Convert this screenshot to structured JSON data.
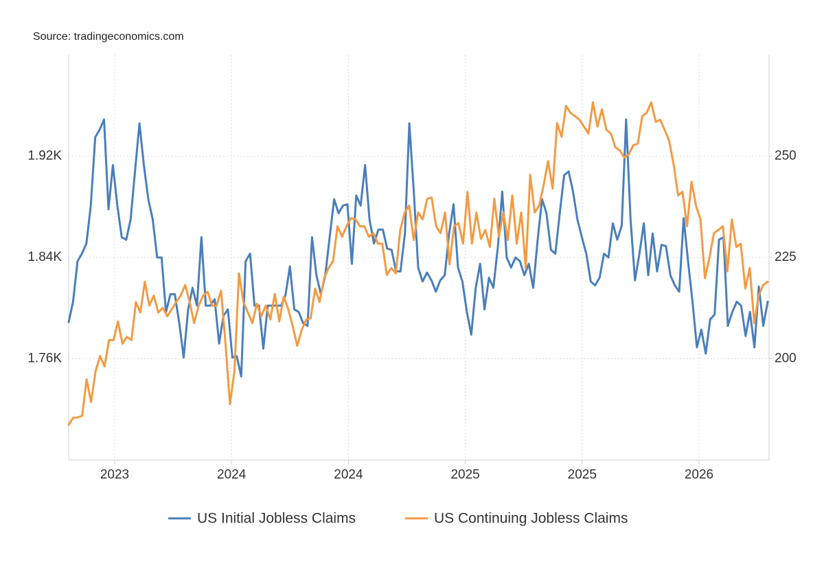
{
  "chart_data": {
    "type": "line",
    "source": "Source: tradingeconomics.com",
    "xtick_labels": [
      "2023",
      "2024",
      "2024",
      "2025",
      "2025",
      "2026"
    ],
    "ylim": [
      1.68,
      2.0
    ],
    "yticks": [
      {
        "value": 1.76,
        "label": "1.76K"
      },
      {
        "value": 1.84,
        "label": "1.84K"
      },
      {
        "value": 1.92,
        "label": "1.92K"
      }
    ],
    "y2lim": [
      175,
      275
    ],
    "y2ticks": [
      200,
      225,
      250
    ],
    "grid": true,
    "legend": "bottom",
    "series": [
      {
        "name": "US Initial Jobless Claims",
        "color": "#4a7ebb",
        "axis": "y",
        "values": [
          1.789,
          1.805,
          1.837,
          1.843,
          1.851,
          1.881,
          1.935,
          1.941,
          1.949,
          1.878,
          1.913,
          1.881,
          1.856,
          1.854,
          1.87,
          1.908,
          1.946,
          1.913,
          1.886,
          1.87,
          1.84,
          1.84,
          1.797,
          1.811,
          1.811,
          1.788,
          1.761,
          1.799,
          1.816,
          1.802,
          1.856,
          1.802,
          1.802,
          1.807,
          1.772,
          1.794,
          1.799,
          1.761,
          1.762,
          1.746,
          1.837,
          1.843,
          1.802,
          1.802,
          1.768,
          1.802,
          1.802,
          1.802,
          1.802,
          1.81,
          1.833,
          1.799,
          1.797,
          1.788,
          1.786,
          1.856,
          1.826,
          1.811,
          1.826,
          1.856,
          1.886,
          1.875,
          1.881,
          1.882,
          1.835,
          1.889,
          1.881,
          1.913,
          1.87,
          1.851,
          1.862,
          1.862,
          1.847,
          1.846,
          1.829,
          1.829,
          1.859,
          1.946,
          1.892,
          1.832,
          1.821,
          1.828,
          1.822,
          1.813,
          1.822,
          1.826,
          1.859,
          1.882,
          1.832,
          1.821,
          1.797,
          1.779,
          1.816,
          1.835,
          1.799,
          1.824,
          1.816,
          1.848,
          1.892,
          1.84,
          1.832,
          1.84,
          1.837,
          1.826,
          1.835,
          1.816,
          1.854,
          1.886,
          1.875,
          1.846,
          1.843,
          1.875,
          1.905,
          1.908,
          1.892,
          1.87,
          1.856,
          1.843,
          1.821,
          1.818,
          1.824,
          1.843,
          1.84,
          1.867,
          1.854,
          1.865,
          1.949,
          1.87,
          1.822,
          1.843,
          1.867,
          1.826,
          1.859,
          1.829,
          1.85,
          1.849,
          1.826,
          1.818,
          1.813,
          1.871,
          1.837,
          1.805,
          1.769,
          1.783,
          1.764,
          1.791,
          1.795,
          1.854,
          1.856,
          1.786,
          1.797,
          1.805,
          1.802,
          1.778,
          1.797,
          1.769,
          1.817,
          1.786,
          1.805
        ]
      },
      {
        "name": "US Continuing Jobless Claims",
        "color": "#f39a43",
        "axis": "y2",
        "values": [
          183.7,
          185.4,
          185.5,
          185.9,
          194.9,
          189.3,
          196.9,
          200.7,
          198.1,
          204.6,
          204.6,
          209.2,
          203.7,
          205.4,
          204.6,
          214.0,
          211.4,
          219.0,
          213.1,
          215.6,
          211.4,
          212.6,
          210.5,
          212.2,
          214.0,
          215.6,
          218.2,
          214.0,
          208.8,
          213.1,
          215.6,
          216.5,
          213.1,
          213.1,
          216.8,
          203.7,
          188.8,
          196.9,
          221.1,
          214.0,
          211.4,
          208.8,
          213.6,
          210.5,
          213.1,
          209.7,
          216.0,
          209.2,
          215.3,
          212.2,
          208.0,
          203.2,
          207.1,
          209.7,
          210.0,
          217.3,
          214.0,
          219.9,
          222.4,
          224.1,
          232.7,
          230.1,
          232.7,
          234.7,
          234.4,
          232.7,
          232.7,
          230.1,
          231.0,
          228.4,
          228.4,
          220.7,
          222.4,
          221.1,
          231.8,
          236.1,
          237.8,
          229.3,
          236.1,
          234.4,
          239.5,
          239.8,
          232.7,
          231.0,
          236.1,
          223.3,
          232.7,
          233.5,
          228.4,
          241.2,
          228.4,
          236.1,
          229.6,
          231.8,
          227.6,
          239.5,
          230.1,
          236.1,
          229.3,
          240.3,
          228.4,
          236.1,
          222.4,
          245.4,
          236.1,
          237.8,
          242.9,
          248.8,
          242.0,
          258.2,
          254.8,
          262.4,
          260.7,
          259.9,
          259.0,
          257.3,
          255.6,
          263.3,
          257.3,
          261.6,
          256.5,
          255.6,
          252.2,
          251.4,
          249.7,
          250.5,
          252.7,
          253.1,
          259.9,
          260.7,
          263.3,
          258.5,
          259.0,
          256.5,
          253.9,
          248.0,
          240.3,
          241.2,
          232.7,
          243.7,
          237.8,
          234.4,
          219.9,
          225.0,
          231.0,
          231.8,
          232.7,
          221.6,
          234.4,
          227.6,
          228.4,
          217.3,
          222.4,
          208.8,
          215.6,
          218.2,
          219.0
        ]
      }
    ]
  }
}
